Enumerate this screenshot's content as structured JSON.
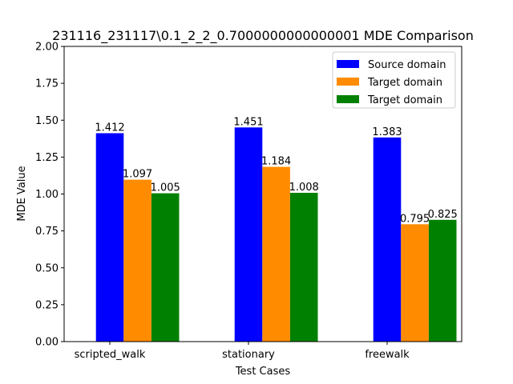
{
  "chart_data": {
    "type": "bar",
    "title": "231116_231117\\0.1_2_2_0.7000000000000001 MDE Comparison",
    "xlabel": "Test Cases",
    "ylabel": "MDE Value",
    "ylim": [
      0,
      2.0
    ],
    "yticks": [
      "0.00",
      "0.25",
      "0.50",
      "0.75",
      "1.00",
      "1.25",
      "1.50",
      "1.75",
      "2.00"
    ],
    "ytick_values": [
      0,
      0.25,
      0.5,
      0.75,
      1.0,
      1.25,
      1.5,
      1.75,
      2.0
    ],
    "categories": [
      "scripted_walk",
      "stationary",
      "freewalk"
    ],
    "legend_position": "top-right",
    "grid": false,
    "series": [
      {
        "name": "Source domain",
        "color": "#0000ff",
        "values": [
          1.412,
          1.451,
          1.383
        ],
        "labels": [
          "1.412",
          "1.451",
          "1.383"
        ]
      },
      {
        "name": "Target domain",
        "color": "#ff8c00",
        "values": [
          1.097,
          1.184,
          0.795
        ],
        "labels": [
          "1.097",
          "1.184",
          "0.795"
        ]
      },
      {
        "name": "Target domain",
        "color": "#008000",
        "values": [
          1.005,
          1.008,
          0.825
        ],
        "labels": [
          "1.005",
          "1.008",
          "0.825"
        ]
      }
    ]
  }
}
